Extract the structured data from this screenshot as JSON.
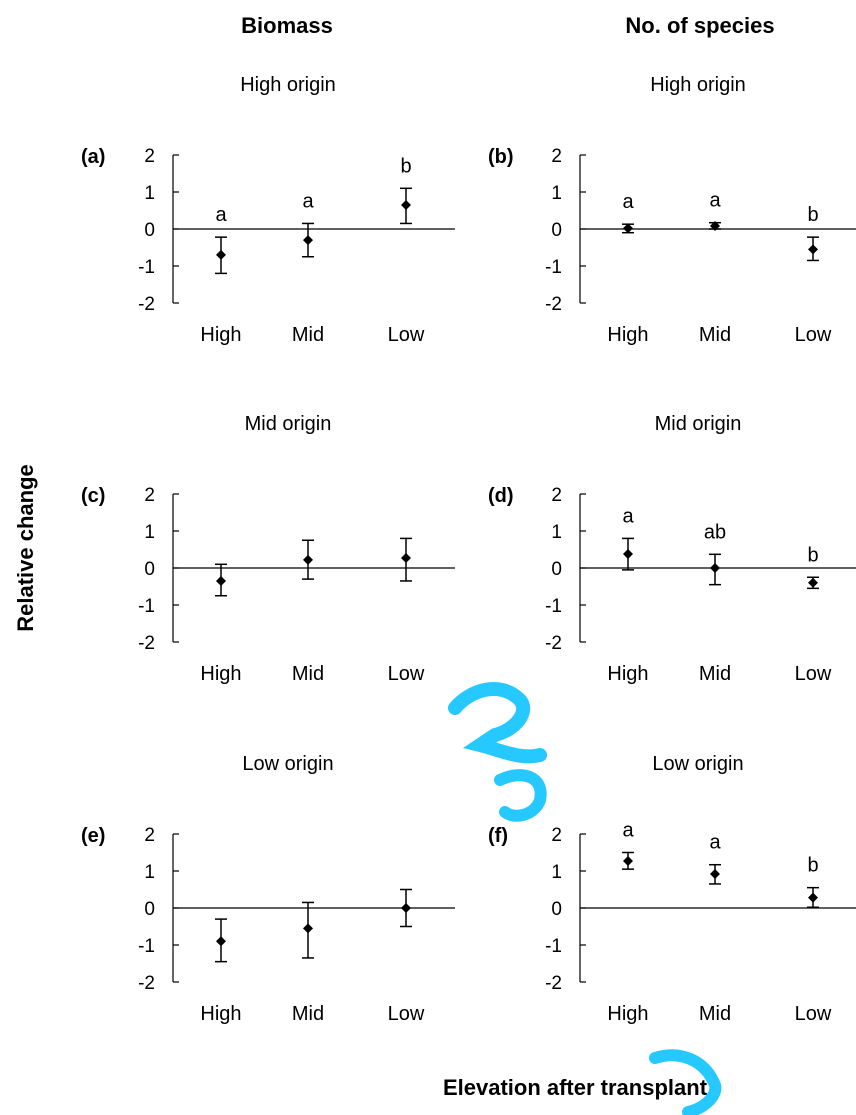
{
  "figure": {
    "column_titles": [
      "Biomass",
      "No. of species"
    ],
    "ylabel": "Relative change",
    "xlabel": "Elevation after transplant",
    "watermark_colors": [
      "#00bfff"
    ]
  },
  "chart_data": [
    {
      "type": "scatter",
      "panel": "(a)",
      "title": "High origin",
      "categories": [
        "High",
        "Mid",
        "Low"
      ],
      "values": [
        -0.7,
        -0.3,
        0.65
      ],
      "error_low": [
        -1.2,
        -0.75,
        0.15
      ],
      "error_high": [
        -0.22,
        0.15,
        1.1
      ],
      "letters": [
        "a",
        "a",
        "b"
      ],
      "ylim": [
        -2,
        2
      ],
      "yticks": [
        "2",
        "1",
        "0",
        "-1",
        "-2"
      ]
    },
    {
      "type": "scatter",
      "panel": "(b)",
      "title": "High origin",
      "categories": [
        "High",
        "Mid",
        "Low"
      ],
      "values": [
        0.02,
        0.08,
        -0.55
      ],
      "error_low": [
        -0.1,
        0.0,
        -0.85
      ],
      "error_high": [
        0.13,
        0.17,
        -0.22
      ],
      "letters": [
        "a",
        "a",
        "b"
      ],
      "ylim": [
        -2,
        2
      ],
      "yticks": [
        "2",
        "1",
        "0",
        "-1",
        "-2"
      ]
    },
    {
      "type": "scatter",
      "panel": "(c)",
      "title": "Mid origin",
      "categories": [
        "High",
        "Mid",
        "Low"
      ],
      "values": [
        -0.35,
        0.22,
        0.27
      ],
      "error_low": [
        -0.75,
        -0.3,
        -0.35
      ],
      "error_high": [
        0.1,
        0.75,
        0.8
      ],
      "letters": [
        "",
        "",
        ""
      ],
      "ylim": [
        -2,
        2
      ],
      "yticks": [
        "2",
        "1",
        "0",
        "-1",
        "-2"
      ]
    },
    {
      "type": "scatter",
      "panel": "(d)",
      "title": "Mid origin",
      "categories": [
        "High",
        "Mid",
        "Low"
      ],
      "values": [
        0.38,
        0.0,
        -0.4
      ],
      "error_low": [
        -0.05,
        -0.45,
        -0.55
      ],
      "error_high": [
        0.8,
        0.37,
        -0.25
      ],
      "letters": [
        "a",
        "ab",
        "b"
      ],
      "ylim": [
        -2,
        2
      ],
      "yticks": [
        "2",
        "1",
        "0",
        "-1",
        "-2"
      ]
    },
    {
      "type": "scatter",
      "panel": "(e)",
      "title": "Low origin",
      "categories": [
        "High",
        "Mid",
        "Low"
      ],
      "values": [
        -0.9,
        -0.55,
        0.0
      ],
      "error_low": [
        -1.45,
        -1.35,
        -0.5
      ],
      "error_high": [
        -0.3,
        0.15,
        0.5
      ],
      "letters": [
        "",
        "",
        ""
      ],
      "ylim": [
        -2,
        2
      ],
      "yticks": [
        "2",
        "1",
        "0",
        "-1",
        "-2"
      ]
    },
    {
      "type": "scatter",
      "panel": "(f)",
      "title": "Low origin",
      "categories": [
        "High",
        "Mid",
        "Low"
      ],
      "values": [
        1.27,
        0.92,
        0.28
      ],
      "error_low": [
        1.05,
        0.65,
        0.02
      ],
      "error_high": [
        1.5,
        1.17,
        0.55
      ],
      "letters": [
        "a",
        "a",
        "b"
      ],
      "ylim": [
        -2,
        2
      ],
      "yticks": [
        "2",
        "1",
        "0",
        "-1",
        "-2"
      ]
    }
  ]
}
